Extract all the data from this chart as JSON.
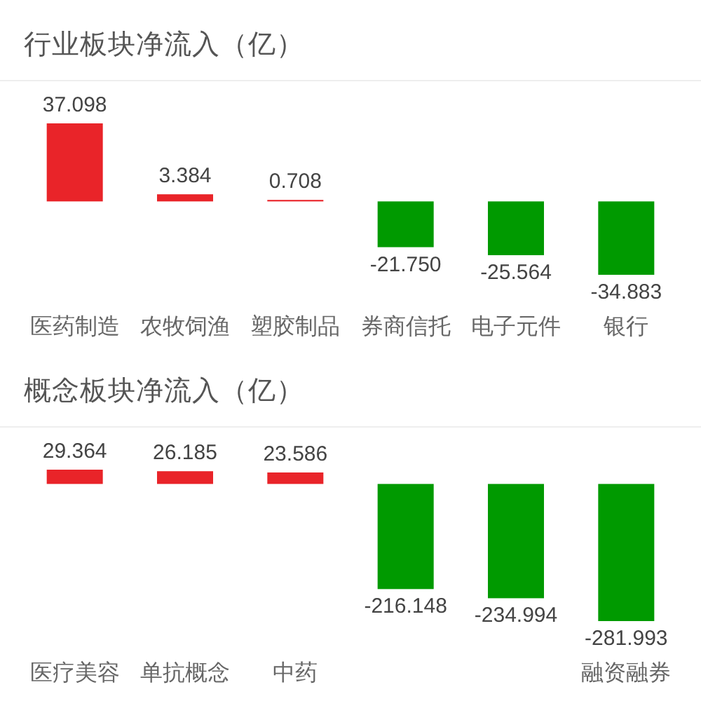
{
  "chart_data": [
    {
      "type": "bar",
      "title": "行业板块净流入（亿）",
      "categories": [
        "医药制造",
        "农牧饲渔",
        "塑胶制品",
        "券商信托",
        "电子元件",
        "银行"
      ],
      "values": [
        37.098,
        3.384,
        0.708,
        -21.75,
        -25.564,
        -34.883
      ],
      "colors": [
        "#e92429",
        "#e92429",
        "#e92429",
        "#009a00",
        "#009a00",
        "#009a00"
      ],
      "value_labels": [
        "37.098",
        "3.384",
        "0.708",
        "-21.750",
        "-25.564",
        "-34.883"
      ],
      "tick_labels": "x"
    },
    {
      "type": "bar",
      "title": "概念板块净流入（亿）",
      "categories": [
        "医疗美容",
        "单抗概念",
        "中药",
        null,
        null,
        "融资融券"
      ],
      "values": [
        29.364,
        26.185,
        23.586,
        -216.148,
        -234.994,
        -281.993
      ],
      "colors": [
        "#e92429",
        "#e92429",
        "#e92429",
        "#009a00",
        "#009a00",
        "#009a00"
      ],
      "value_labels": [
        "29.364",
        "26.185",
        "23.586",
        "-216.148",
        "-234.994",
        "-281.993"
      ],
      "tick_labels": "x"
    }
  ]
}
